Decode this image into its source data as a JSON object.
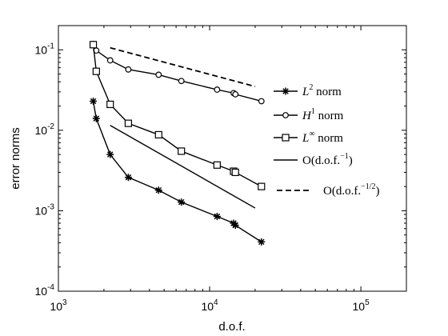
{
  "chart_data": {
    "type": "line",
    "x_scale": "log",
    "y_scale": "log",
    "xlim": [
      1000,
      200000
    ],
    "ylim": [
      0.0001,
      0.2
    ],
    "xlabel": "d.o.f.",
    "ylabel": "error norms",
    "x_ticks": [
      {
        "value": 1000,
        "base": "10",
        "exp": "3"
      },
      {
        "value": 10000,
        "base": "10",
        "exp": "4"
      },
      {
        "value": 100000,
        "base": "10",
        "exp": "5"
      }
    ],
    "y_ticks": [
      {
        "value": 0.0001,
        "base": "10",
        "exp": "-4"
      },
      {
        "value": 0.001,
        "base": "10",
        "exp": "-3"
      },
      {
        "value": 0.01,
        "base": "10",
        "exp": "-2"
      },
      {
        "value": 0.1,
        "base": "10",
        "exp": "-1"
      }
    ],
    "grid": false,
    "legend_position": "right",
    "series": [
      {
        "name": "L² norm",
        "marker": "asterisk",
        "line": "solid",
        "x": [
          1700,
          1780,
          2200,
          2900,
          4600,
          6500,
          11200,
          14400,
          14800,
          22000
        ],
        "y": [
          0.023,
          0.014,
          0.005,
          0.0026,
          0.0018,
          0.00128,
          0.00085,
          0.0007,
          0.00066,
          0.00041
        ]
      },
      {
        "name": "H¹ norm",
        "marker": "circle",
        "line": "solid",
        "x": [
          1700,
          1780,
          2200,
          2900,
          4600,
          6500,
          11200,
          14400,
          14800,
          22000
        ],
        "y": [
          0.118,
          0.098,
          0.074,
          0.057,
          0.049,
          0.041,
          0.032,
          0.029,
          0.028,
          0.023
        ]
      },
      {
        "name": "L∞ norm",
        "marker": "square",
        "line": "solid",
        "x": [
          1700,
          1780,
          2200,
          2900,
          4600,
          6500,
          11200,
          14400,
          14800,
          22000
        ],
        "y": [
          0.116,
          0.054,
          0.021,
          0.0122,
          0.0088,
          0.0055,
          0.0037,
          0.0031,
          0.003,
          0.002
        ]
      },
      {
        "name": "O(d.o.f.⁻¹)",
        "marker": "none",
        "line": "solid",
        "x": [
          2200,
          20000
        ],
        "y": [
          0.0115,
          0.00108
        ]
      },
      {
        "name": "O(d.o.f.⁻¹ᐟ²)",
        "marker": "none",
        "line": "dashed",
        "x": [
          2200,
          20000
        ],
        "y": [
          0.106,
          0.035
        ]
      }
    ]
  },
  "legend": {
    "items": [
      {
        "main": "L",
        "sup": "2",
        "rest": " norm",
        "marker": "asterisk",
        "line": "solid"
      },
      {
        "main": "H",
        "sup": "1",
        "rest": " norm",
        "marker": "circle",
        "line": "solid"
      },
      {
        "main": "L",
        "sup": "∞",
        "rest": " norm",
        "marker": "square",
        "line": "solid"
      },
      {
        "main": "O(d.o.f.",
        "sup": "−1",
        "rest": ")",
        "marker": "none",
        "line": "solid"
      },
      {
        "main": "O(d.o.f.",
        "sup": "−1/2",
        "rest": ")",
        "marker": "none",
        "line": "dashed"
      }
    ]
  }
}
